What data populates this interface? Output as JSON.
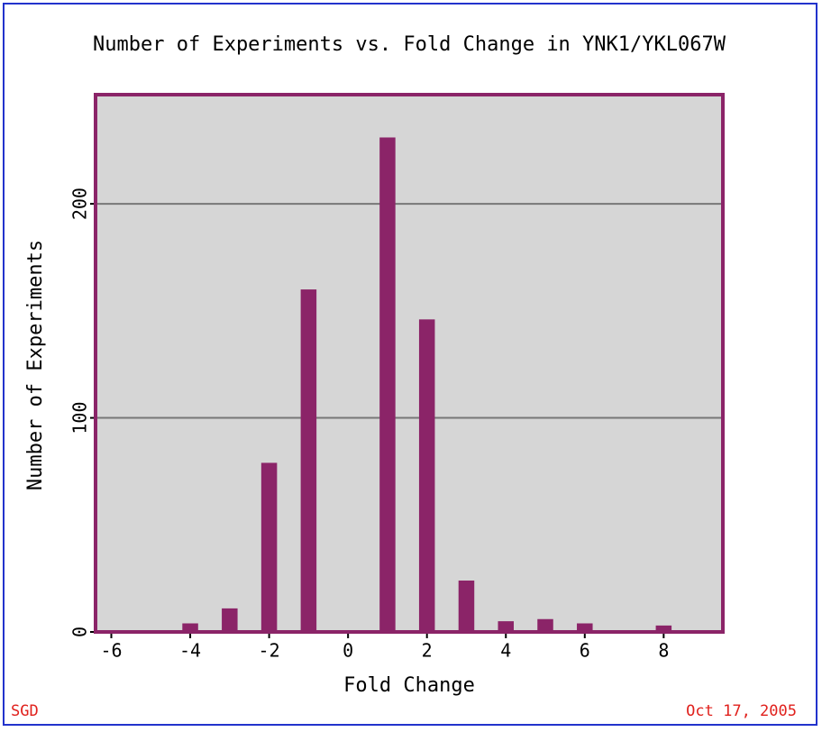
{
  "chart_data": {
    "type": "bar",
    "title": "Number of Experiments vs. Fold Change in YNK1/YKL067W",
    "x_label": "Fold Change",
    "y_label": "Number of Experiments",
    "x": [
      -4,
      -3,
      -2,
      -1,
      0,
      1,
      2,
      3,
      4,
      5,
      6,
      7,
      8
    ],
    "values": [
      4,
      11,
      79,
      160,
      0,
      231,
      146,
      24,
      5,
      6,
      4,
      0,
      3
    ],
    "color": "#8b2468",
    "xlim": [
      -6.4,
      9.5
    ],
    "xticks": [
      -6,
      -4,
      -2,
      0,
      2,
      4,
      6,
      8
    ],
    "ylim": [
      0,
      251
    ],
    "yticks": [
      0,
      100,
      200
    ],
    "grid": true,
    "source": "SGD",
    "date": "Oct 17, 2005"
  }
}
